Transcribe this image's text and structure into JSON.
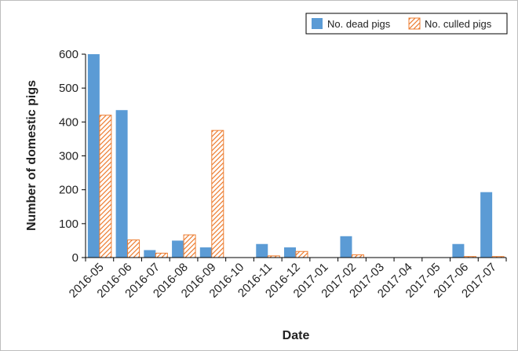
{
  "chart_data": {
    "type": "bar",
    "title": "",
    "xlabel": "Date",
    "ylabel": "Number of domestic pigs",
    "ylim": [
      0,
      600
    ],
    "yticks": [
      0,
      100,
      200,
      300,
      400,
      500,
      600
    ],
    "grid": false,
    "legend_position": "top-right",
    "categories": [
      "2016-05",
      "2016-06",
      "2016-07",
      "2016-08",
      "2016-09",
      "2016-10",
      "2016-11",
      "2016-12",
      "2017-01",
      "2017-02",
      "2017-03",
      "2017-04",
      "2017-05",
      "2017-06",
      "2017-07"
    ],
    "series": [
      {
        "name": "No. dead pigs",
        "color": "#5b9bd5",
        "pattern": "solid",
        "values": [
          600,
          435,
          22,
          50,
          30,
          0,
          40,
          30,
          0,
          63,
          0,
          0,
          0,
          40,
          193
        ]
      },
      {
        "name": "No. culled pigs",
        "color": "#ed7d31",
        "pattern": "hatched",
        "values": [
          420,
          52,
          13,
          67,
          375,
          0,
          5,
          18,
          0,
          8,
          0,
          0,
          0,
          3,
          3
        ]
      }
    ]
  }
}
